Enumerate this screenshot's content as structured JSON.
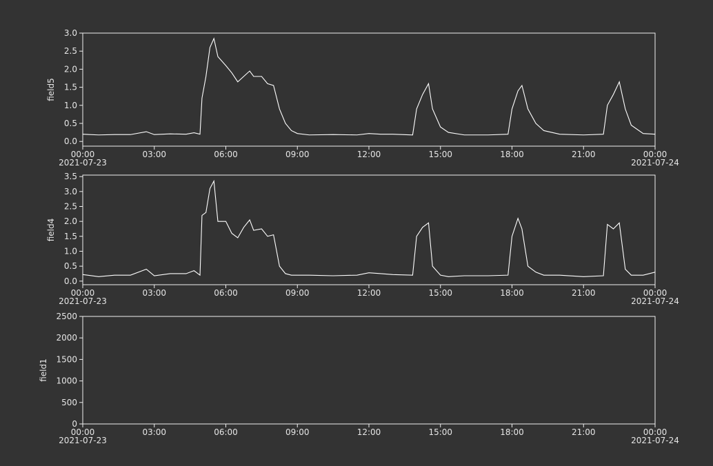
{
  "chart_data": [
    {
      "type": "line",
      "ylabel": "field5",
      "x": [
        "2021-07-23 00:00",
        "2021-07-23 00:40",
        "2021-07-23 01:20",
        "2021-07-23 02:00",
        "2021-07-23 02:40",
        "2021-07-23 03:00",
        "2021-07-23 03:40",
        "2021-07-23 04:20",
        "2021-07-23 04:40",
        "2021-07-23 04:55",
        "2021-07-23 05:00",
        "2021-07-23 05:10",
        "2021-07-23 05:20",
        "2021-07-23 05:30",
        "2021-07-23 05:40",
        "2021-07-23 06:00",
        "2021-07-23 06:15",
        "2021-07-23 06:30",
        "2021-07-23 06:45",
        "2021-07-23 07:00",
        "2021-07-23 07:10",
        "2021-07-23 07:30",
        "2021-07-23 07:45",
        "2021-07-23 08:00",
        "2021-07-23 08:15",
        "2021-07-23 08:30",
        "2021-07-23 08:45",
        "2021-07-23 09:00",
        "2021-07-23 09:30",
        "2021-07-23 10:30",
        "2021-07-23 11:30",
        "2021-07-23 12:00",
        "2021-07-23 12:30",
        "2021-07-23 13:00",
        "2021-07-23 13:50",
        "2021-07-23 14:00",
        "2021-07-23 14:15",
        "2021-07-23 14:30",
        "2021-07-23 14:40",
        "2021-07-23 15:00",
        "2021-07-23 15:20",
        "2021-07-23 16:00",
        "2021-07-23 17:00",
        "2021-07-23 17:50",
        "2021-07-23 18:00",
        "2021-07-23 18:15",
        "2021-07-23 18:25",
        "2021-07-23 18:40",
        "2021-07-23 19:00",
        "2021-07-23 19:20",
        "2021-07-23 20:00",
        "2021-07-23 21:00",
        "2021-07-23 21:50",
        "2021-07-23 22:00",
        "2021-07-23 22:15",
        "2021-07-23 22:30",
        "2021-07-23 22:45",
        "2021-07-23 23:00",
        "2021-07-23 23:30",
        "2021-07-24 00:00"
      ],
      "values": [
        0.2,
        0.18,
        0.19,
        0.19,
        0.27,
        0.19,
        0.21,
        0.2,
        0.24,
        0.2,
        1.2,
        1.8,
        2.6,
        2.85,
        2.35,
        2.1,
        1.9,
        1.65,
        1.8,
        1.95,
        1.8,
        1.8,
        1.6,
        1.55,
        0.9,
        0.5,
        0.3,
        0.22,
        0.18,
        0.19,
        0.18,
        0.22,
        0.2,
        0.2,
        0.18,
        0.9,
        1.3,
        1.6,
        0.9,
        0.4,
        0.25,
        0.18,
        0.18,
        0.2,
        0.9,
        1.4,
        1.55,
        0.9,
        0.5,
        0.3,
        0.2,
        0.18,
        0.2,
        1.0,
        1.3,
        1.65,
        0.9,
        0.45,
        0.22,
        0.2
      ],
      "color": "#ffffff",
      "xlim": [
        "2021-07-23 00:00",
        "2021-07-24 00:00"
      ],
      "xticks": [
        {
          "value": "2021-07-23 00:00",
          "label": "00:00"
        },
        {
          "value": "2021-07-23 03:00",
          "label": "03:00"
        },
        {
          "value": "2021-07-23 06:00",
          "label": "06:00"
        },
        {
          "value": "2021-07-23 09:00",
          "label": "09:00"
        },
        {
          "value": "2021-07-23 12:00",
          "label": "12:00"
        },
        {
          "value": "2021-07-23 15:00",
          "label": "15:00"
        },
        {
          "value": "2021-07-23 18:00",
          "label": "18:00"
        },
        {
          "value": "2021-07-23 21:00",
          "label": "21:00"
        },
        {
          "value": "2021-07-24 00:00",
          "label": "00:00"
        }
      ],
      "x_date_labels": [
        {
          "value": "2021-07-23 00:00",
          "label": "2021-07-23"
        },
        {
          "value": "2021-07-24 00:00",
          "label": "2021-07-24"
        }
      ],
      "ylim": [
        -0.13,
        3.0
      ],
      "yticks": [
        {
          "value": 0,
          "label": "0.0"
        },
        0.5,
        {
          "value": 1,
          "label": "1.0"
        },
        1.5,
        {
          "value": 2,
          "label": "2.0"
        },
        2.5,
        {
          "value": 3,
          "label": "3.0"
        }
      ]
    },
    {
      "type": "line",
      "ylabel": "field4",
      "x": [
        "2021-07-23 00:00",
        "2021-07-23 00:40",
        "2021-07-23 01:20",
        "2021-07-23 02:00",
        "2021-07-23 02:40",
        "2021-07-23 03:00",
        "2021-07-23 03:40",
        "2021-07-23 04:20",
        "2021-07-23 04:40",
        "2021-07-23 04:55",
        "2021-07-23 05:00",
        "2021-07-23 05:10",
        "2021-07-23 05:20",
        "2021-07-23 05:30",
        "2021-07-23 05:40",
        "2021-07-23 06:00",
        "2021-07-23 06:15",
        "2021-07-23 06:30",
        "2021-07-23 06:45",
        "2021-07-23 07:00",
        "2021-07-23 07:10",
        "2021-07-23 07:30",
        "2021-07-23 07:45",
        "2021-07-23 08:00",
        "2021-07-23 08:15",
        "2021-07-23 08:30",
        "2021-07-23 08:45",
        "2021-07-23 09:00",
        "2021-07-23 09:30",
        "2021-07-23 10:30",
        "2021-07-23 11:30",
        "2021-07-23 12:00",
        "2021-07-23 12:30",
        "2021-07-23 13:00",
        "2021-07-23 13:50",
        "2021-07-23 14:00",
        "2021-07-23 14:15",
        "2021-07-23 14:30",
        "2021-07-23 14:40",
        "2021-07-23 15:00",
        "2021-07-23 15:20",
        "2021-07-23 16:00",
        "2021-07-23 17:00",
        "2021-07-23 17:50",
        "2021-07-23 18:00",
        "2021-07-23 18:15",
        "2021-07-23 18:25",
        "2021-07-23 18:40",
        "2021-07-23 19:00",
        "2021-07-23 19:20",
        "2021-07-23 20:00",
        "2021-07-23 21:00",
        "2021-07-23 21:50",
        "2021-07-23 22:00",
        "2021-07-23 22:15",
        "2021-07-23 22:30",
        "2021-07-23 22:45",
        "2021-07-23 23:00",
        "2021-07-23 23:30",
        "2021-07-24 00:00"
      ],
      "values": [
        0.22,
        0.15,
        0.2,
        0.2,
        0.4,
        0.18,
        0.25,
        0.25,
        0.35,
        0.2,
        2.2,
        2.3,
        3.1,
        3.35,
        2.0,
        2.0,
        1.6,
        1.45,
        1.8,
        2.05,
        1.7,
        1.75,
        1.5,
        1.55,
        0.5,
        0.25,
        0.2,
        0.2,
        0.2,
        0.18,
        0.2,
        0.28,
        0.25,
        0.22,
        0.2,
        1.5,
        1.8,
        1.95,
        0.5,
        0.2,
        0.15,
        0.18,
        0.18,
        0.2,
        1.5,
        2.1,
        1.75,
        0.5,
        0.3,
        0.2,
        0.2,
        0.15,
        0.18,
        1.9,
        1.75,
        1.95,
        0.4,
        0.2,
        0.2,
        0.3
      ],
      "color": "#ffffff",
      "xlim": [
        "2021-07-23 00:00",
        "2021-07-24 00:00"
      ],
      "xticks": [
        {
          "value": "2021-07-23 00:00",
          "label": "00:00"
        },
        {
          "value": "2021-07-23 03:00",
          "label": "03:00"
        },
        {
          "value": "2021-07-23 06:00",
          "label": "06:00"
        },
        {
          "value": "2021-07-23 09:00",
          "label": "09:00"
        },
        {
          "value": "2021-07-23 12:00",
          "label": "12:00"
        },
        {
          "value": "2021-07-23 15:00",
          "label": "15:00"
        },
        {
          "value": "2021-07-23 18:00",
          "label": "18:00"
        },
        {
          "value": "2021-07-23 21:00",
          "label": "21:00"
        },
        {
          "value": "2021-07-24 00:00",
          "label": "00:00"
        }
      ],
      "x_date_labels": [
        {
          "value": "2021-07-23 00:00",
          "label": "2021-07-23"
        },
        {
          "value": "2021-07-24 00:00",
          "label": "2021-07-24"
        }
      ],
      "ylim": [
        -0.12,
        3.55
      ],
      "yticks": [
        {
          "value": 0,
          "label": "0.0"
        },
        0.5,
        {
          "value": 1,
          "label": "1.0"
        },
        1.5,
        {
          "value": 2,
          "label": "2.0"
        },
        2.5,
        {
          "value": 3,
          "label": "3.0"
        },
        3.5
      ]
    },
    {
      "type": "line",
      "ylabel": "field1",
      "xlim": [
        "2021-07-23 00:00",
        "2021-07-24 00:00"
      ],
      "xticks": [
        {
          "value": "2021-07-23 00:00",
          "label": "00:00"
        },
        {
          "value": "2021-07-23 03:00",
          "label": "03:00"
        },
        {
          "value": "2021-07-23 06:00",
          "label": "06:00"
        },
        {
          "value": "2021-07-23 09:00",
          "label": "09:00"
        },
        {
          "value": "2021-07-23 12:00",
          "label": "12:00"
        },
        {
          "value": "2021-07-23 15:00",
          "label": "15:00"
        },
        {
          "value": "2021-07-23 18:00",
          "label": "18:00"
        },
        {
          "value": "2021-07-23 21:00",
          "label": "21:00"
        },
        {
          "value": "2021-07-24 00:00",
          "label": "00:00"
        }
      ],
      "x_date_labels": [
        {
          "value": "2021-07-23 00:00",
          "label": "2021-07-23"
        },
        {
          "value": "2021-07-24 00:00",
          "label": "2021-07-24"
        }
      ],
      "ylim": [
        0,
        2500
      ],
      "yticks": [
        0,
        500,
        1000,
        1500,
        2000,
        2500
      ]
    }
  ]
}
